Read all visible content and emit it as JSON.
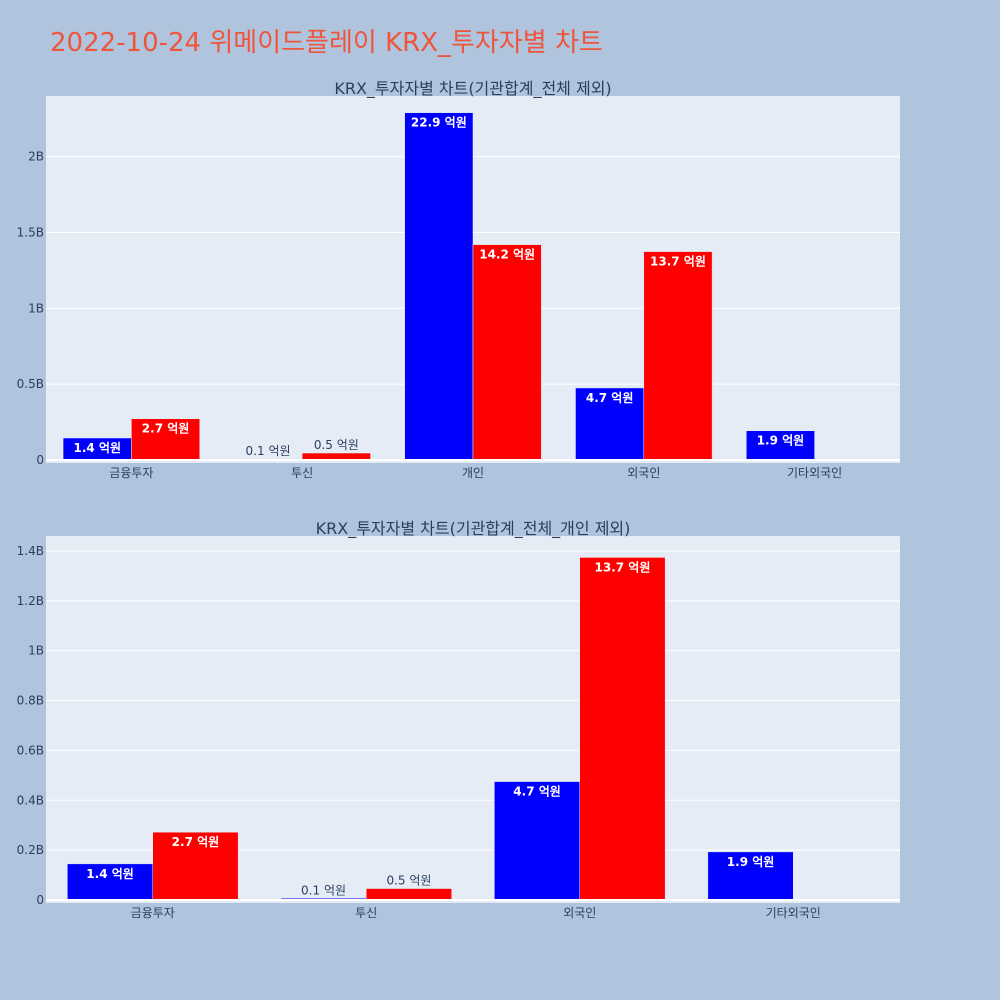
{
  "page": {
    "title": "2022-10-24 위메이드플레이 KRX_투자자별 차트"
  },
  "colors": {
    "buy": "#0000ff",
    "sell": "#ff0000"
  },
  "chart_data": [
    {
      "type": "bar",
      "title": "KRX_투자자별 차트(기관합계_전체 제외)",
      "categories": [
        "금융투자",
        "투신",
        "개인",
        "외국인",
        "기타외국인"
      ],
      "series": [
        {
          "values": [
            145000000,
            7000000,
            2290000000,
            475000000,
            193000000
          ],
          "labels": [
            "1.4 억원",
            "0.1 억원",
            "22.9 억원",
            "4.7 억원",
            "1.9 억원"
          ]
        },
        {
          "values": [
            272000000,
            46000000,
            1420000000,
            1374000000,
            0
          ],
          "labels": [
            "2.7 억원",
            "0.5 억원",
            "14.2 억원",
            "13.7 억원",
            ""
          ]
        }
      ],
      "ylim": [
        0,
        2400000000
      ],
      "yticks": [
        0,
        500000000,
        1000000000,
        1500000000,
        2000000000
      ],
      "ytick_labels": [
        "0",
        "0.5B",
        "1B",
        "1.5B",
        "2B"
      ]
    },
    {
      "type": "bar",
      "title": "KRX_투자자별 차트(기관합계_전체_개인 제외)",
      "categories": [
        "금융투자",
        "투신",
        "외국인",
        "기타외국인"
      ],
      "series": [
        {
          "values": [
            145000000,
            7000000,
            475000000,
            193000000
          ],
          "labels": [
            "1.4 억원",
            "0.1 억원",
            "4.7 억원",
            "1.9 억원"
          ]
        },
        {
          "values": [
            272000000,
            46000000,
            1374000000,
            0
          ],
          "labels": [
            "2.7 억원",
            "0.5 억원",
            "13.7 억원",
            ""
          ]
        }
      ],
      "ylim": [
        0,
        1460000000
      ],
      "yticks": [
        0,
        200000000,
        400000000,
        600000000,
        800000000,
        1000000000,
        1200000000,
        1400000000
      ],
      "ytick_labels": [
        "0",
        "0.2B",
        "0.4B",
        "0.6B",
        "0.8B",
        "1B",
        "1.2B",
        "1.4B"
      ]
    }
  ]
}
